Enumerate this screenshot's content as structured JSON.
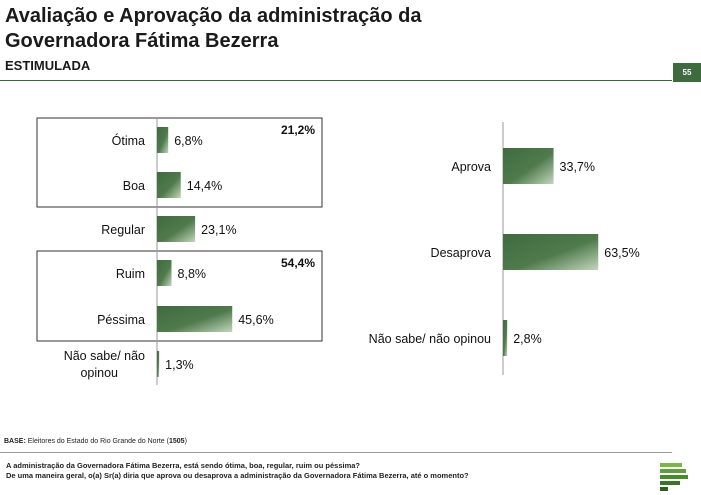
{
  "page": {
    "title_line1": "Avaliação e Aprovação da administração da",
    "title_line2": "Governadora Fátima Bezerra",
    "subtitle": "ESTIMULADA",
    "page_number": "55"
  },
  "footer": {
    "base_label": "BASE:",
    "base_text": " Eleitores do Estado do Rio Grande do Norte (",
    "base_n": "1505",
    "base_close": ")",
    "question_line1": "A administração da Governadora Fátima Bezerra, está sendo ótima, boa, regular, ruim ou péssima?",
    "question_line2": "De uma maneira geral, o(a) Sr(a) diria que aprova ou desaprova a administração da Governadora Fátima Bezerra, até o momento?"
  },
  "colors": {
    "bar_dark": "#3f6b3f",
    "bar_light": "#a8c2a0",
    "accent": "#3d6b3d"
  },
  "chart_data": [
    {
      "type": "bar",
      "orientation": "horizontal",
      "categories": [
        "Ótima",
        "Boa",
        "Regular",
        "Ruim",
        "Péssima",
        "Não sabe/ não opinou"
      ],
      "values": [
        6.8,
        14.4,
        23.1,
        8.8,
        45.6,
        1.3
      ],
      "value_labels": [
        "6,8%",
        "14,4%",
        "23,1%",
        "8,8%",
        "45,6%",
        "1,3%"
      ],
      "groups": [
        {
          "label": "21,2%",
          "categories": [
            "Ótima",
            "Boa"
          ]
        },
        {
          "label": "54,4%",
          "categories": [
            "Ruim",
            "Péssima"
          ]
        }
      ],
      "title": "",
      "xlabel": "",
      "ylabel": ""
    },
    {
      "type": "bar",
      "orientation": "horizontal",
      "categories": [
        "Aprova",
        "Desaprova",
        "Não sabe/ não opinou"
      ],
      "values": [
        33.7,
        63.5,
        2.8
      ],
      "value_labels": [
        "33,7%",
        "63,5%",
        "2,8%"
      ],
      "title": "",
      "xlabel": "",
      "ylabel": ""
    }
  ]
}
